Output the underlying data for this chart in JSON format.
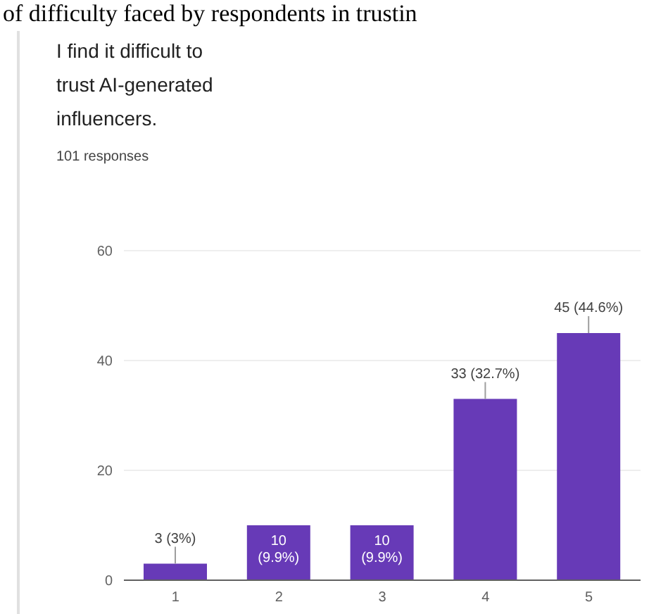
{
  "chart_data": {
    "type": "bar",
    "title": "I find it difficult to trust AI-generated influencers.",
    "subtitle": "101 responses",
    "annotations": [
      "of difficulty faced by respondents in trustin"
    ],
    "categories": [
      "1",
      "2",
      "3",
      "4",
      "5"
    ],
    "values": [
      3,
      10,
      10,
      33,
      45
    ],
    "color": "#673ab7",
    "value_labels": [
      "3 (3%)",
      "10 (9.9%)",
      "10 (9.9%)",
      "33 (32.7%)",
      "45 (44.6%)"
    ],
    "ylim": [
      0,
      60
    ],
    "yticks": [
      0,
      20,
      40,
      60
    ],
    "grid": "y"
  }
}
